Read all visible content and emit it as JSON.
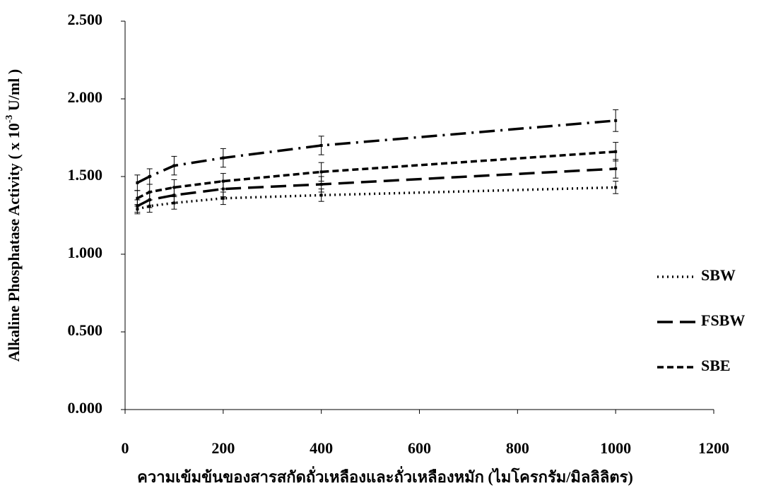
{
  "chart_data": {
    "type": "line",
    "xlabel": "ความเข้มข้นของสารสกัดถั่วเหลืองและถั่วเหลืองหมัก (ไมโครกรัม/มิลลิลิตร)",
    "ylabel": "Alkaline Phosphatase Activity  ( x 10",
    "ylabel_sup": "-3",
    "ylabel_end": " U/ml )",
    "x": [
      25,
      50,
      100,
      200,
      400,
      1000
    ],
    "series": [
      {
        "name": "SBW",
        "color": "#000000",
        "dash": "2,5",
        "values": [
          1.29,
          1.31,
          1.33,
          1.36,
          1.38,
          1.43
        ],
        "errors": [
          0.03,
          0.04,
          0.04,
          0.04,
          0.04,
          0.04
        ]
      },
      {
        "name": "FSBW",
        "color": "#000000",
        "dash": "22,10",
        "values": [
          1.31,
          1.35,
          1.38,
          1.42,
          1.45,
          1.55
        ],
        "errors": [
          0.04,
          0.05,
          0.05,
          0.05,
          0.05,
          0.06
        ]
      },
      {
        "name": "SBE",
        "color": "#000000",
        "dash": "9,5",
        "values": [
          1.36,
          1.4,
          1.43,
          1.47,
          1.53,
          1.66
        ],
        "errors": [
          0.05,
          0.05,
          0.05,
          0.05,
          0.06,
          0.06
        ]
      },
      {
        "color": "#000000",
        "dash": "22,8,3,8",
        "values": [
          1.46,
          1.5,
          1.57,
          1.62,
          1.7,
          1.86
        ],
        "errors": [
          0.05,
          0.05,
          0.06,
          0.06,
          0.06,
          0.07
        ]
      }
    ],
    "xlim": [
      0,
      1200
    ],
    "xticks": [
      0,
      200,
      400,
      600,
      800,
      1000,
      1200
    ],
    "ylim": [
      0,
      2.5
    ],
    "yticks": [
      {
        "value": 0,
        "label": "0.000"
      },
      {
        "value": 0.5,
        "label": "0.500"
      },
      {
        "value": 1,
        "label": "1.000"
      },
      {
        "value": 1.5,
        "label": "1.500"
      },
      {
        "value": 2,
        "label": "2.000"
      },
      {
        "value": 2.5,
        "label": "2.500"
      }
    ],
    "legend": "right"
  }
}
